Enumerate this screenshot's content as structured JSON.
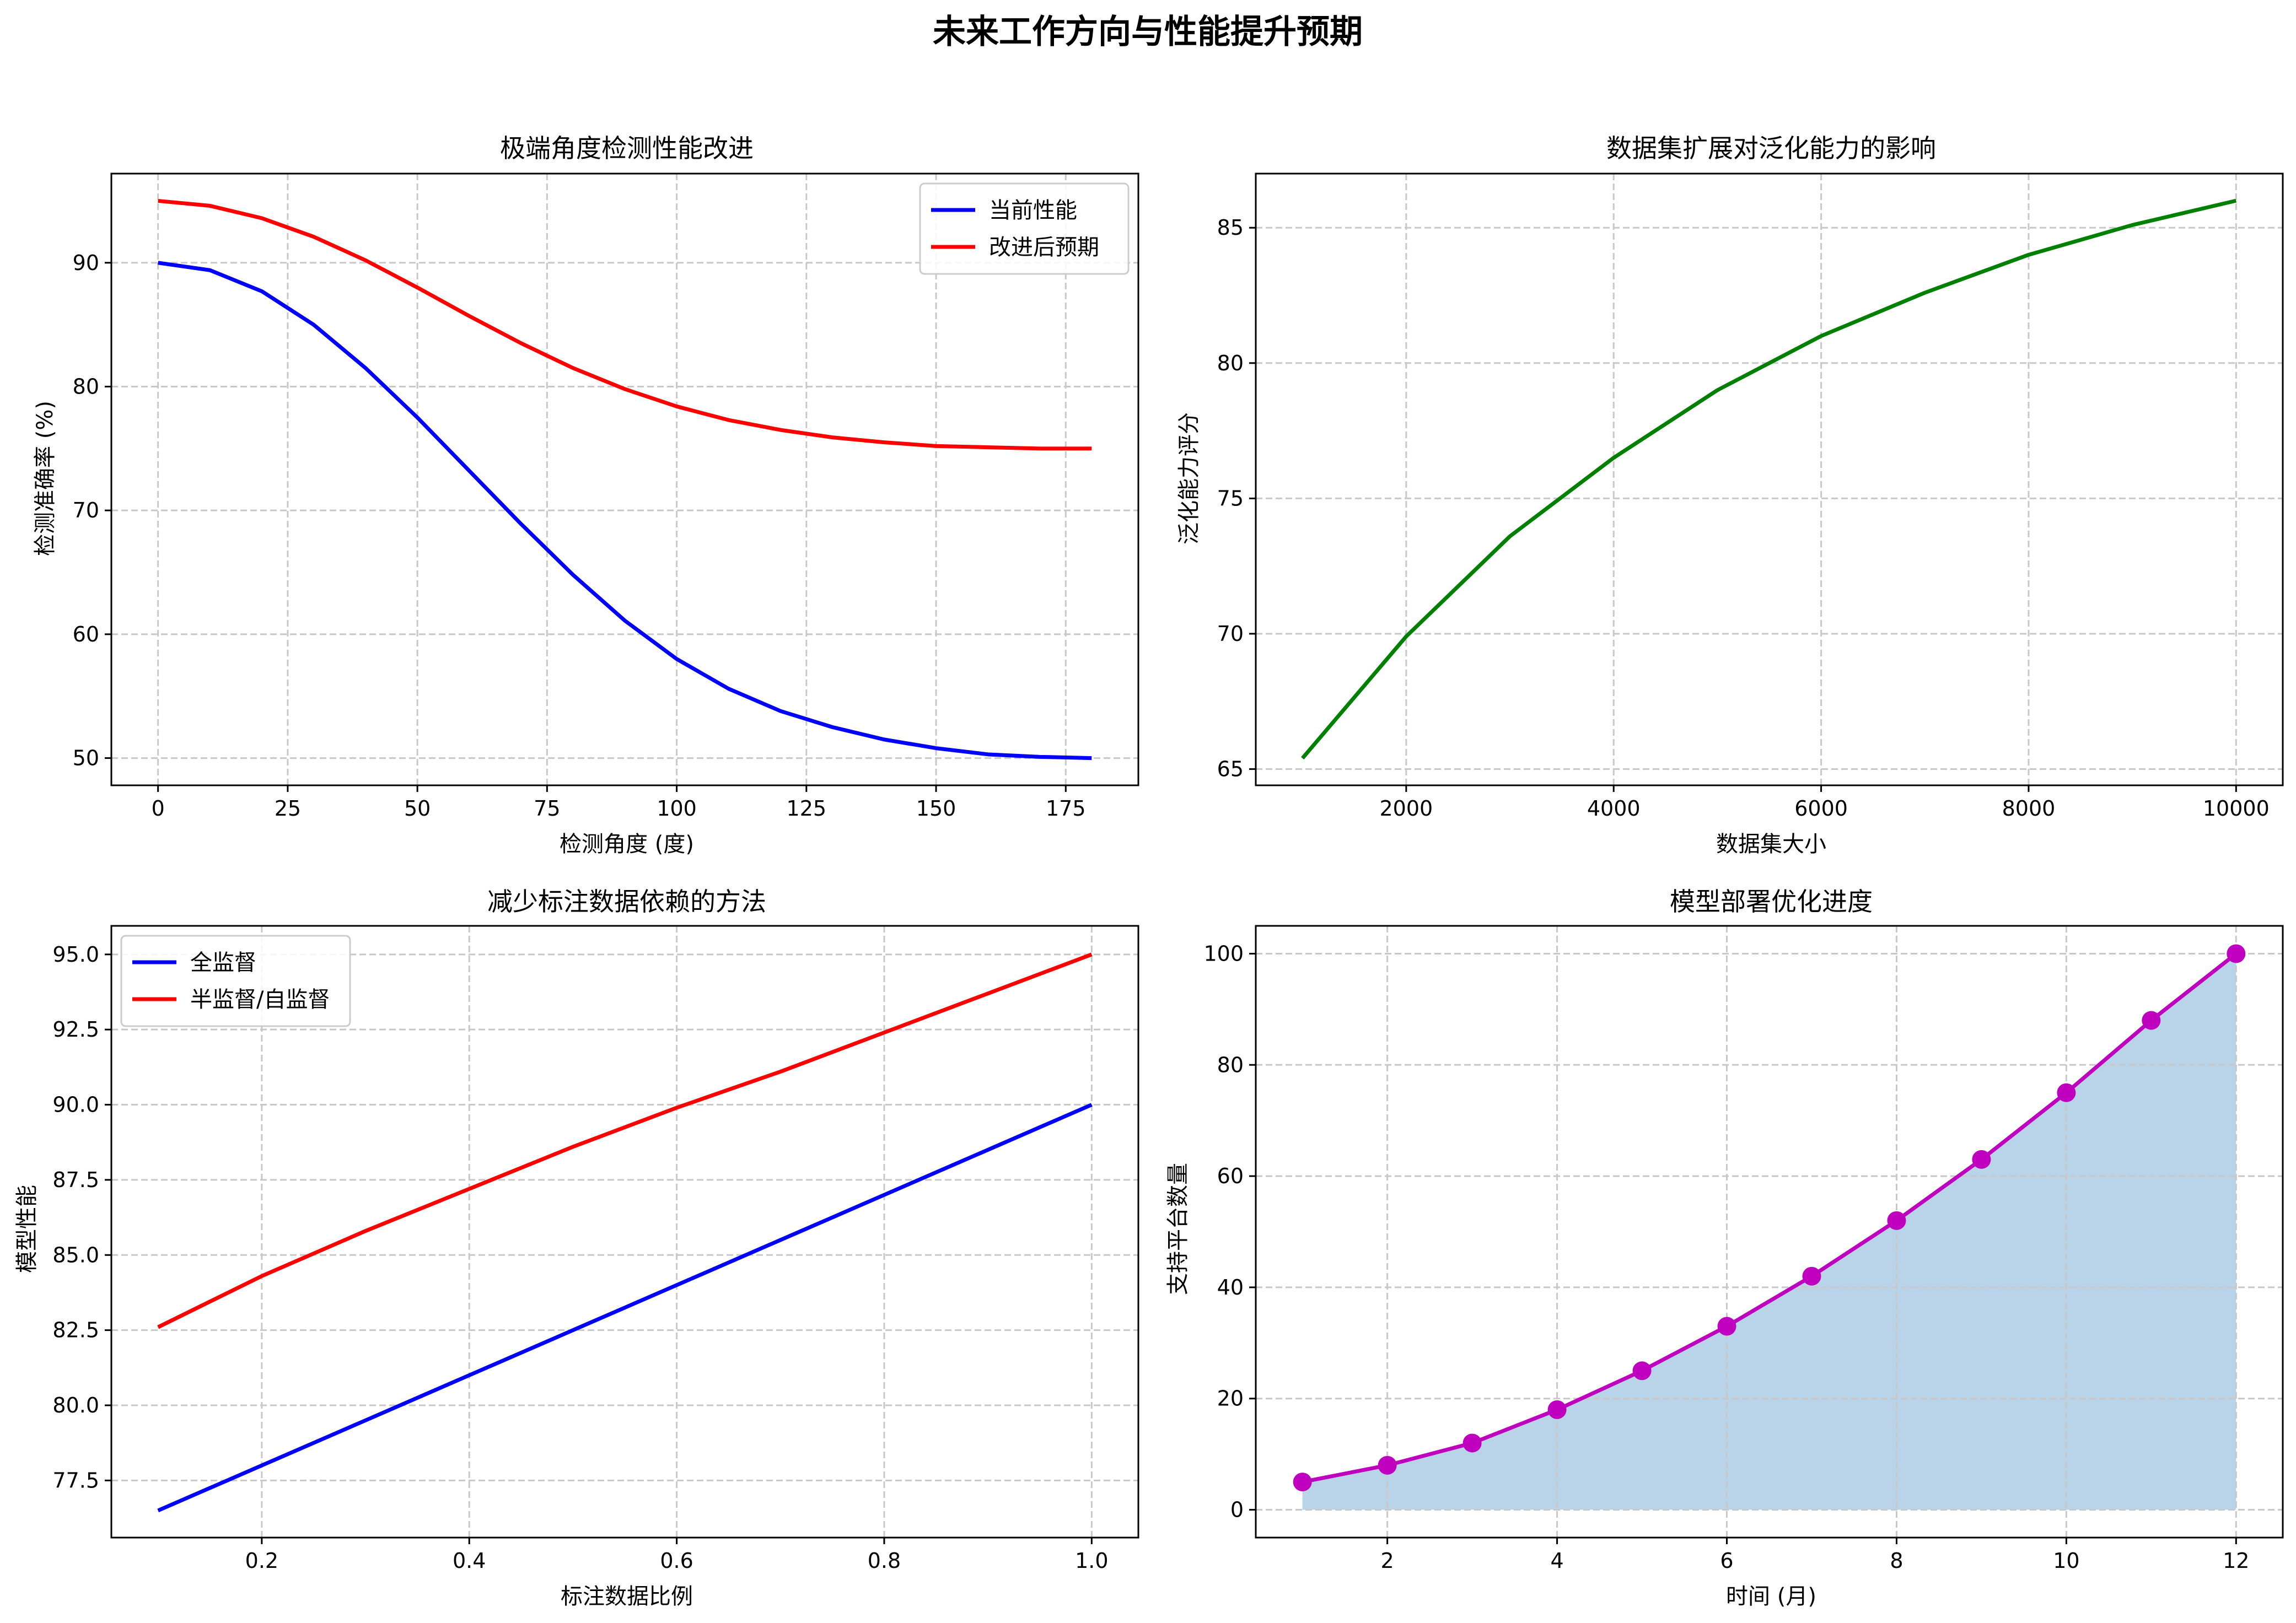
{
  "figure": {
    "title": "未来工作方向与性能提升预期"
  },
  "chart_data": [
    {
      "type": "line",
      "title": "极端角度检测性能改进",
      "xlabel": "检测角度 (度)",
      "ylabel": "检测准确率 (%)",
      "xlim": [
        -9,
        189
      ],
      "ylim": [
        47.8,
        97.2
      ],
      "xticks": [
        0,
        25,
        50,
        75,
        100,
        125,
        150,
        175
      ],
      "yticks": [
        50,
        60,
        70,
        80,
        90
      ],
      "grid": true,
      "legend": "top-right",
      "x": [
        0,
        10,
        20,
        30,
        40,
        50,
        60,
        70,
        80,
        90,
        100,
        110,
        120,
        130,
        140,
        150,
        160,
        170,
        180
      ],
      "series": [
        {
          "name": "当前性能",
          "color": "#0000ff",
          "values": [
            90,
            89.4,
            87.7,
            85.0,
            81.5,
            77.5,
            73.2,
            68.9,
            64.8,
            61.1,
            58.0,
            55.6,
            53.8,
            52.5,
            51.5,
            50.8,
            50.3,
            50.1,
            50
          ]
        },
        {
          "name": "改进后预期",
          "color": "#ff0000",
          "values": [
            95,
            94.6,
            93.6,
            92.1,
            90.2,
            88.0,
            85.7,
            83.5,
            81.5,
            79.8,
            78.4,
            77.3,
            76.5,
            75.9,
            75.5,
            75.2,
            75.1,
            75.0,
            75
          ]
        }
      ]
    },
    {
      "type": "line",
      "title": "数据集扩展对泛化能力的影响",
      "xlabel": "数据集大小",
      "ylabel": "泛化能力评分",
      "xlim": [
        550,
        10450
      ],
      "ylim": [
        64.4,
        87.0
      ],
      "xticks": [
        2000,
        4000,
        6000,
        8000,
        10000
      ],
      "yticks": [
        65,
        70,
        75,
        80,
        85
      ],
      "grid": true,
      "x": [
        1000,
        2000,
        3000,
        4000,
        5000,
        6000,
        7000,
        8000,
        9000,
        10000
      ],
      "series": [
        {
          "color": "#008000",
          "values": [
            65.4,
            69.9,
            73.6,
            76.5,
            79.0,
            81.0,
            82.6,
            84.0,
            85.1,
            86.0
          ]
        }
      ]
    },
    {
      "type": "line",
      "title": "减少标注数据依赖的方法",
      "xlabel": "标注数据比例",
      "ylabel": "模型性能",
      "xlim": [
        0.055,
        1.045
      ],
      "ylim": [
        75.6,
        95.95
      ],
      "xticks": [
        0.2,
        0.4,
        0.6,
        0.8,
        1.0
      ],
      "xticklabels": [
        "0.2",
        "0.4",
        "0.6",
        "0.8",
        "1.0"
      ],
      "yticks": [
        77.5,
        80.0,
        82.5,
        85.0,
        87.5,
        90.0,
        92.5,
        95.0
      ],
      "yticklabels": [
        "77.5",
        "80.0",
        "82.5",
        "85.0",
        "87.5",
        "90.0",
        "92.5",
        "95.0"
      ],
      "grid": true,
      "legend": "top-left",
      "x": [
        0.1,
        0.2,
        0.3,
        0.4,
        0.5,
        0.6,
        0.7,
        0.8,
        0.9,
        1.0
      ],
      "series": [
        {
          "name": "全监督",
          "color": "#0000ff",
          "values": [
            76.5,
            78.0,
            79.5,
            81.0,
            82.5,
            84.0,
            85.5,
            87.0,
            88.5,
            90.0
          ]
        },
        {
          "name": "半监督/自监督",
          "color": "#ff0000",
          "values": [
            82.6,
            84.3,
            85.8,
            87.2,
            88.6,
            89.9,
            91.1,
            92.4,
            93.7,
            95.0
          ]
        }
      ]
    },
    {
      "type": "area",
      "title": "模型部署优化进度",
      "xlabel": "时间 (月)",
      "ylabel": "支持平台数量",
      "xlim": [
        0.45,
        12.55
      ],
      "ylim": [
        -5,
        105
      ],
      "xticks": [
        2,
        4,
        6,
        8,
        10,
        12
      ],
      "yticks": [
        0,
        20,
        40,
        60,
        80,
        100
      ],
      "grid": true,
      "x": [
        1,
        2,
        3,
        4,
        5,
        6,
        7,
        8,
        9,
        10,
        11,
        12
      ],
      "series": [
        {
          "color": "#bf00bf",
          "fill": "#b9d3e8",
          "values": [
            5,
            8,
            12,
            18,
            25,
            33,
            42,
            52,
            63,
            75,
            88,
            100
          ]
        }
      ]
    }
  ]
}
